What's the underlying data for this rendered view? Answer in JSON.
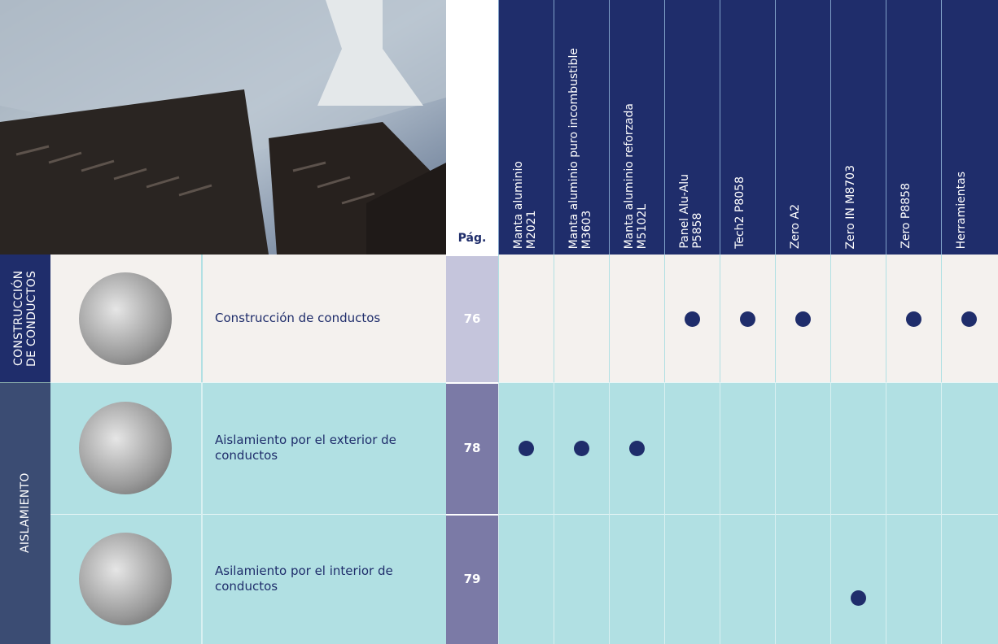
{
  "header": {
    "page_label": "Pág.",
    "products": [
      [
        "Manta aluminio",
        "M2021"
      ],
      [
        "Manta aluminio puro incombustible",
        "M3603"
      ],
      [
        "Manta aluminio reforzada",
        "M5102L"
      ],
      [
        "Panel Alu-Alu",
        "P5858"
      ],
      [
        "Tech2 P8058"
      ],
      [
        "Zero A2"
      ],
      [
        "Zero IN M8703"
      ],
      [
        "Zero P8858"
      ],
      [
        "Herramientas"
      ]
    ]
  },
  "sections": [
    {
      "label": [
        "CONSTRUCCIÓN",
        "DE CONDUCTOS"
      ]
    },
    {
      "label": [
        "AISLAMIENTO"
      ]
    }
  ],
  "rows": [
    {
      "description": "Construcción de conductos",
      "page": "76",
      "marks": [
        false,
        false,
        false,
        true,
        true,
        true,
        false,
        true,
        true
      ]
    },
    {
      "description": "Aislamiento por el exterior de conductos",
      "page": "78",
      "marks": [
        true,
        true,
        true,
        false,
        false,
        false,
        false,
        false,
        false
      ]
    },
    {
      "description": "Asilamiento por el interior de conductos",
      "page": "79",
      "marks": [
        false,
        false,
        false,
        false,
        false,
        false,
        true,
        false,
        false
      ]
    }
  ]
}
